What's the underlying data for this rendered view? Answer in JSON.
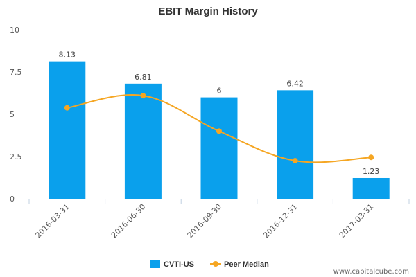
{
  "chart_data": {
    "type": "bar",
    "title": "EBIT Margin History",
    "categories": [
      "2016-03-31",
      "2016-06-30",
      "2016-09-30",
      "2016-12-31",
      "2017-03-31"
    ],
    "series": [
      {
        "name": "CVTI-US",
        "kind": "bar",
        "values": [
          8.13,
          6.81,
          6,
          6.42,
          1.23
        ],
        "color": "#0aa0ec",
        "data_labels": [
          "8.13",
          "6.81",
          "6",
          "6.42",
          "1.23"
        ]
      },
      {
        "name": "Peer Median",
        "kind": "line",
        "values": [
          5.38,
          6.1,
          4.0,
          2.25,
          2.45
        ],
        "color": "#f5a623"
      }
    ],
    "ylim": [
      0,
      10
    ],
    "yticks": [
      "0",
      "2.5",
      "5",
      "7.5",
      "10"
    ],
    "xlabel": "",
    "ylabel": "",
    "grid": false,
    "legend": "bottom-center"
  },
  "watermark": "www.capitalcube.com"
}
